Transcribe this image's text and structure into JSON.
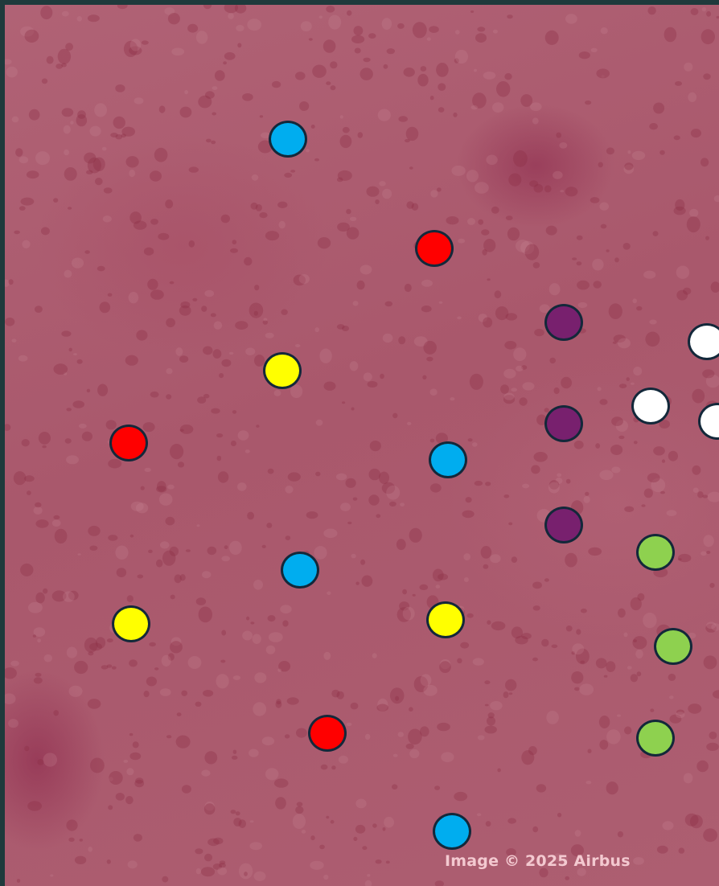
{
  "map": {
    "attribution": "Image © 2025 Airbus"
  },
  "colors": {
    "blue": "#00adef",
    "red": "#ff0000",
    "yellow": "#ffff00",
    "purple": "#78206e",
    "white": "#ffffff",
    "green": "#8ed14f",
    "outline": "#13283a"
  },
  "markers": [
    {
      "color": "blue"
    },
    {
      "color": "red"
    },
    {
      "color": "purple"
    },
    {
      "color": "white"
    },
    {
      "color": "yellow"
    },
    {
      "color": "white"
    },
    {
      "color": "purple"
    },
    {
      "color": "white"
    },
    {
      "color": "red"
    },
    {
      "color": "blue"
    },
    {
      "color": "purple"
    },
    {
      "color": "green"
    },
    {
      "color": "blue"
    },
    {
      "color": "yellow"
    },
    {
      "color": "yellow"
    },
    {
      "color": "green"
    },
    {
      "color": "red"
    },
    {
      "color": "green"
    },
    {
      "color": "blue"
    }
  ]
}
